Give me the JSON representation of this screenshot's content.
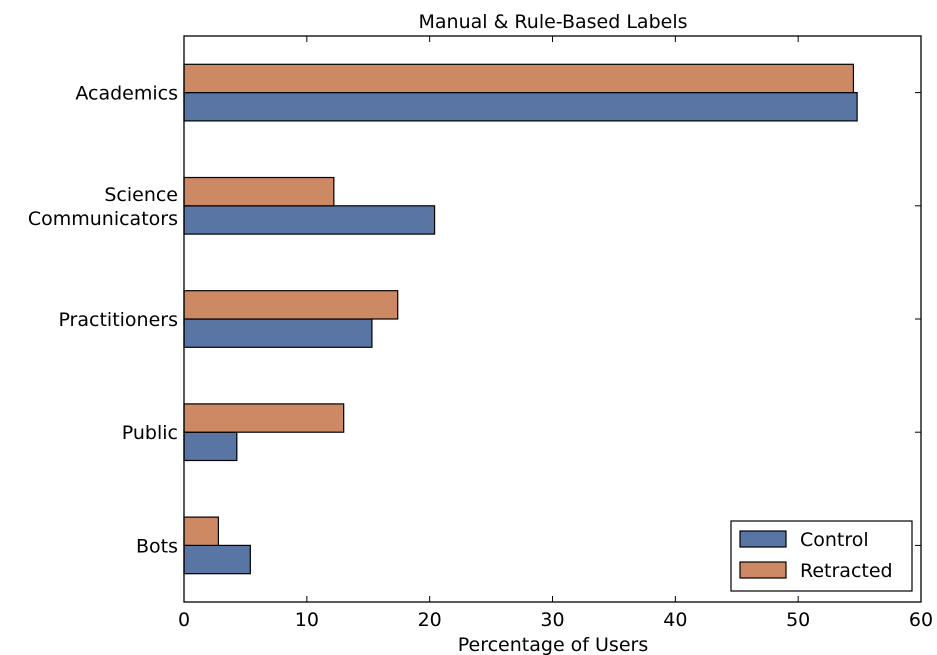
{
  "chart_data": {
    "type": "bar",
    "orientation": "horizontal",
    "title": "Manual & Rule-Based Labels",
    "xlabel": "Percentage of Users",
    "ylabel": "",
    "xlim": [
      0,
      60
    ],
    "xticks": [
      0,
      10,
      20,
      30,
      40,
      50,
      60
    ],
    "categories": [
      "Academics",
      "Science\nCommunicators",
      "Practitioners",
      "Public",
      "Bots"
    ],
    "series": [
      {
        "name": "Control",
        "color": "#5875a4",
        "values": [
          54.8,
          20.4,
          15.3,
          4.3,
          5.4
        ]
      },
      {
        "name": "Retracted",
        "color": "#cc8963",
        "values": [
          54.5,
          12.2,
          17.4,
          13.0,
          2.8
        ]
      }
    ],
    "grid": false,
    "legend_position": "bottom-right"
  }
}
